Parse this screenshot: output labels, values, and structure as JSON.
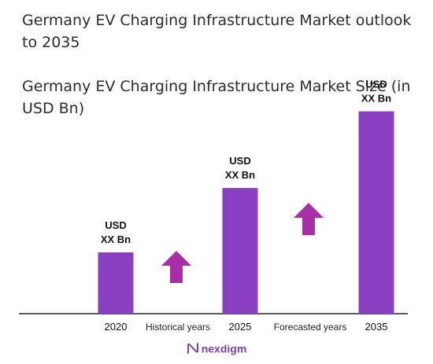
{
  "header": {
    "title": "Germany EV Charging Infrastructure Market outlook to 2035",
    "subtitle": "Germany EV Charging Infrastructure Market Size (in USD Bn)"
  },
  "chart_data": {
    "type": "bar",
    "categories": [
      "2020",
      "2025",
      "2035"
    ],
    "values": [
      1,
      2.05,
      3.3
    ],
    "bar_labels": [
      "USD XX Bn",
      "USD XX Bn",
      "USD XX Bn"
    ],
    "period_labels": [
      "Historical years",
      "Forecasted years"
    ],
    "ylim": [
      0,
      3.5
    ],
    "grid": false,
    "bar_color": "#8a3fc1",
    "arrow_color": "#a82fa8"
  },
  "brand": {
    "name": "nexdigm",
    "icon": "nexdigm-logo-icon"
  }
}
